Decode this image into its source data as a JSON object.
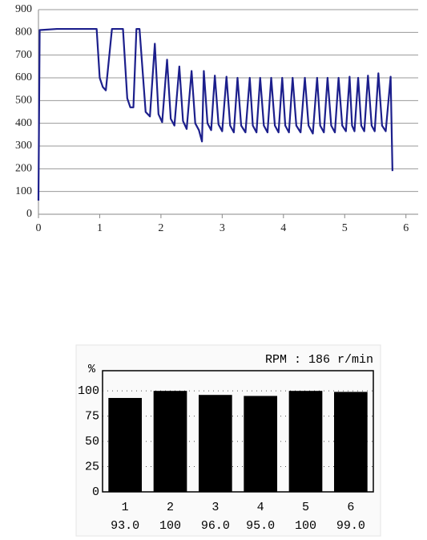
{
  "chart_data": [
    {
      "type": "line",
      "color": "#1c1f8c",
      "grid": true,
      "x": [
        0,
        0.02,
        0.3,
        0.95,
        1.0,
        1.05,
        1.1,
        1.2,
        1.38,
        1.45,
        1.5,
        1.55,
        1.6,
        1.65,
        1.75,
        1.82,
        1.9,
        1.96,
        2.02,
        2.1,
        2.16,
        2.22,
        2.3,
        2.36,
        2.42,
        2.5,
        2.56,
        2.62,
        2.67,
        2.7,
        2.76,
        2.82,
        2.88,
        2.94,
        3.0,
        3.07,
        3.13,
        3.19,
        3.25,
        3.31,
        3.38,
        3.45,
        3.5,
        3.56,
        3.62,
        3.68,
        3.74,
        3.8,
        3.86,
        3.92,
        3.98,
        4.03,
        4.09,
        4.15,
        4.21,
        4.28,
        4.35,
        4.41,
        4.48,
        4.55,
        4.6,
        4.66,
        4.72,
        4.78,
        4.84,
        4.9,
        4.96,
        5.02,
        5.08,
        5.12,
        5.16,
        5.22,
        5.27,
        5.32,
        5.38,
        5.44,
        5.49,
        5.55,
        5.61,
        5.67,
        5.75,
        5.78
      ],
      "y": [
        60,
        810,
        815,
        815,
        600,
        560,
        545,
        815,
        815,
        510,
        470,
        470,
        815,
        815,
        450,
        430,
        750,
        440,
        405,
        680,
        420,
        390,
        650,
        410,
        375,
        630,
        400,
        370,
        320,
        630,
        400,
        370,
        610,
        395,
        365,
        605,
        390,
        360,
        600,
        390,
        360,
        600,
        390,
        360,
        600,
        390,
        360,
        600,
        390,
        360,
        600,
        390,
        360,
        600,
        390,
        360,
        600,
        390,
        355,
        600,
        390,
        360,
        600,
        390,
        360,
        600,
        390,
        365,
        605,
        390,
        365,
        600,
        390,
        365,
        610,
        390,
        365,
        620,
        390,
        365,
        605,
        190
      ],
      "xlim": [
        0,
        6.2
      ],
      "xticks": [
        0,
        1,
        2,
        3,
        4,
        5,
        6
      ],
      "ylim": [
        0,
        900
      ],
      "yticks": [
        0,
        100,
        200,
        300,
        400,
        500,
        600,
        700,
        800,
        900
      ]
    },
    {
      "type": "bar",
      "title": "RPM : 186 r/min",
      "y_label": "%",
      "color": "#000000",
      "grid": true,
      "categories": [
        "1",
        "2",
        "3",
        "4",
        "5",
        "6"
      ],
      "values": [
        93,
        100,
        96,
        95,
        100,
        99
      ],
      "value_labels": [
        "93.0",
        "100",
        "96.0",
        "95.0",
        "100",
        "99.0"
      ],
      "ylim": [
        0,
        120
      ],
      "yticks": [
        0,
        25,
        50,
        75,
        100
      ]
    }
  ]
}
